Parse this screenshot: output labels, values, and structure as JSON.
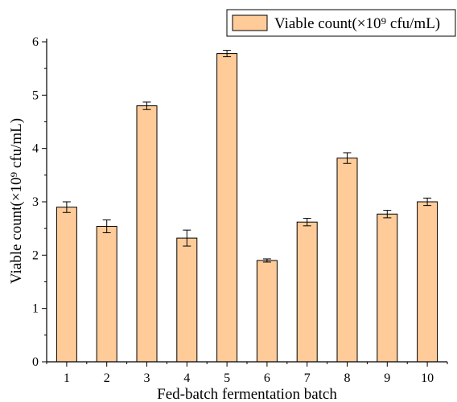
{
  "chart_data": {
    "type": "bar",
    "categories": [
      "1",
      "2",
      "3",
      "4",
      "5",
      "6",
      "7",
      "8",
      "9",
      "10"
    ],
    "series": [
      {
        "name": "Viable count(×10⁹ cfu/mL)",
        "values": [
          2.9,
          2.54,
          4.8,
          2.32,
          5.78,
          1.9,
          2.62,
          3.82,
          2.77,
          3.0
        ],
        "errors": [
          0.1,
          0.12,
          0.07,
          0.15,
          0.06,
          0.03,
          0.07,
          0.1,
          0.07,
          0.07
        ]
      }
    ],
    "xlabel": "Fed-batch fermentation batch",
    "ylabel": "Viable count(×10⁹ cfu/mL)",
    "ylim": [
      0,
      6
    ],
    "yticks": [
      "0",
      "1",
      "2",
      "3",
      "4",
      "5",
      "6"
    ],
    "grid": false,
    "legend_position": "top-right",
    "bar_color": "#FFCC99",
    "bar_edge_color": "#000000"
  }
}
